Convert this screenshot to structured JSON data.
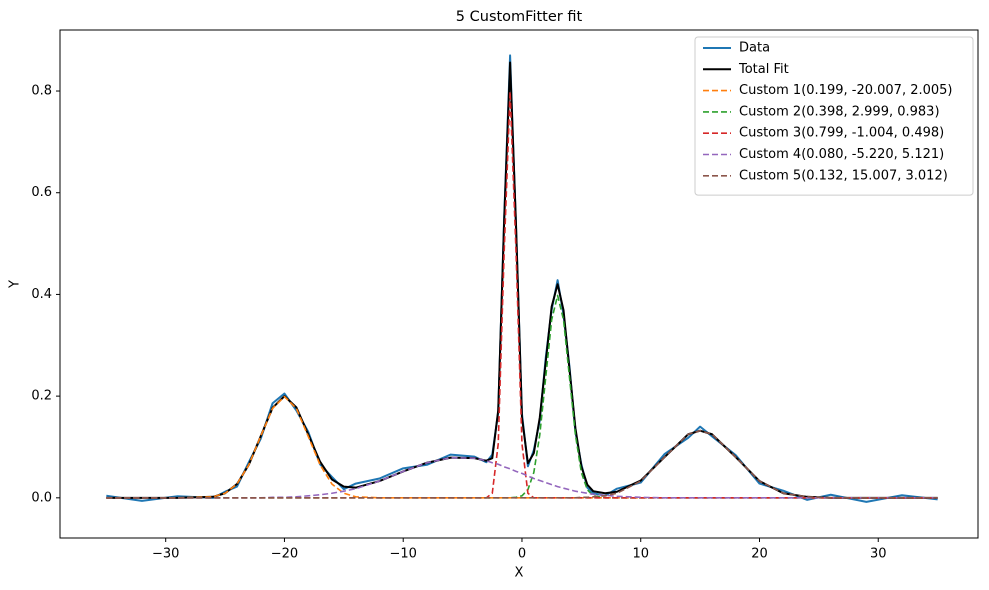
{
  "chart_data": {
    "type": "line",
    "title": "5 CustomFitter fit",
    "xlabel": "X",
    "ylabel": "Y",
    "x": [
      -35,
      -32,
      -29,
      -26,
      -25,
      -24,
      -23,
      -22,
      -21,
      -20,
      -19,
      -18,
      -17,
      -16,
      -15,
      -14,
      -12,
      -10,
      -8,
      -6,
      -4,
      -3,
      -2.5,
      -2,
      -1.5,
      -1,
      -0.5,
      0,
      0.5,
      1,
      1.5,
      2,
      2.5,
      3,
      3.5,
      4,
      4.5,
      5,
      5.5,
      6,
      7,
      8,
      10,
      12,
      14,
      15,
      16,
      18,
      20,
      22,
      24,
      26,
      29,
      32,
      35
    ],
    "series": [
      {
        "name": "Data",
        "color": "#1f77b4",
        "style": "solid",
        "width": 2,
        "values": [
          0.004,
          -0.006,
          0.003,
          0.0,
          0.012,
          0.022,
          0.07,
          0.116,
          0.186,
          0.205,
          0.172,
          0.13,
          0.066,
          0.041,
          0.017,
          0.028,
          0.038,
          0.058,
          0.065,
          0.085,
          0.081,
          0.07,
          0.085,
          0.168,
          0.55,
          0.87,
          0.53,
          0.165,
          0.062,
          0.094,
          0.152,
          0.275,
          0.37,
          0.428,
          0.36,
          0.258,
          0.13,
          0.066,
          0.02,
          0.009,
          0.004,
          0.018,
          0.03,
          0.086,
          0.118,
          0.14,
          0.121,
          0.084,
          0.028,
          0.014,
          -0.004,
          0.006,
          -0.008,
          0.005,
          -0.003
        ]
      },
      {
        "name": "Total Fit",
        "color": "#000000",
        "style": "solid",
        "width": 2,
        "values": [
          0,
          0,
          0,
          0.002,
          0.009,
          0.027,
          0.065,
          0.121,
          0.177,
          0.2,
          0.178,
          0.125,
          0.071,
          0.036,
          0.022,
          0.02,
          0.033,
          0.052,
          0.069,
          0.079,
          0.078,
          0.073,
          0.078,
          0.172,
          0.544,
          0.856,
          0.536,
          0.158,
          0.068,
          0.088,
          0.158,
          0.267,
          0.376,
          0.42,
          0.369,
          0.253,
          0.137,
          0.062,
          0.026,
          0.013,
          0.009,
          0.012,
          0.034,
          0.08,
          0.125,
          0.132,
          0.125,
          0.08,
          0.033,
          0.009,
          0.002,
          0,
          0,
          0,
          0
        ]
      },
      {
        "name": "Custom 1(0.199, -20.007, 2.005)",
        "color": "#ff7f0e",
        "style": "dashed",
        "width": 1.6,
        "values": [
          0,
          0,
          0,
          0.002,
          0.009,
          0.027,
          0.065,
          0.121,
          0.176,
          0.199,
          0.176,
          0.121,
          0.065,
          0.027,
          0.009,
          0.002,
          0,
          0,
          0,
          0,
          0,
          0,
          0,
          0,
          0,
          0,
          0,
          0,
          0,
          0,
          0,
          0,
          0,
          0,
          0,
          0,
          0,
          0,
          0,
          0,
          0,
          0,
          0,
          0,
          0,
          0,
          0,
          0,
          0,
          0,
          0,
          0,
          0,
          0,
          0
        ]
      },
      {
        "name": "Custom 2(0.398, 2.999, 0.983)",
        "color": "#2ca02c",
        "style": "dashed",
        "width": 1.6,
        "values": [
          0,
          0,
          0,
          0,
          0,
          0,
          0,
          0,
          0,
          0,
          0,
          0,
          0,
          0,
          0,
          0,
          0,
          0,
          0,
          0,
          0,
          0,
          0,
          0,
          0,
          0,
          0.001,
          0.004,
          0.016,
          0.05,
          0.124,
          0.237,
          0.35,
          0.398,
          0.35,
          0.237,
          0.124,
          0.05,
          0.016,
          0.004,
          0,
          0,
          0,
          0,
          0,
          0,
          0,
          0,
          0,
          0,
          0,
          0,
          0,
          0,
          0
        ]
      },
      {
        "name": "Custom 3(0.799, -1.004, 0.498)",
        "color": "#d62728",
        "style": "dashed",
        "width": 1.6,
        "values": [
          0,
          0,
          0,
          0,
          0,
          0,
          0,
          0,
          0,
          0,
          0,
          0,
          0,
          0,
          0,
          0,
          0,
          0,
          0,
          0,
          0,
          0,
          0.009,
          0.106,
          0.483,
          0.799,
          0.483,
          0.106,
          0.009,
          0,
          0,
          0,
          0,
          0,
          0,
          0,
          0,
          0,
          0,
          0,
          0,
          0,
          0,
          0,
          0,
          0,
          0,
          0,
          0,
          0,
          0,
          0,
          0,
          0,
          0
        ]
      },
      {
        "name": "Custom 4(0.080, -5.220, 5.121)",
        "color": "#9467bd",
        "style": "dashed",
        "width": 1.6,
        "values": [
          0,
          0,
          0,
          0,
          0,
          0,
          0,
          0,
          0.001,
          0.001,
          0.002,
          0.004,
          0.006,
          0.009,
          0.013,
          0.018,
          0.033,
          0.052,
          0.069,
          0.079,
          0.078,
          0.073,
          0.069,
          0.066,
          0.061,
          0.057,
          0.052,
          0.048,
          0.043,
          0.038,
          0.034,
          0.03,
          0.026,
          0.022,
          0.019,
          0.016,
          0.013,
          0.011,
          0.009,
          0.007,
          0.005,
          0.003,
          0.001,
          0,
          0,
          0,
          0,
          0,
          0,
          0,
          0,
          0,
          0,
          0,
          0
        ]
      },
      {
        "name": "Custom 5(0.132, 15.007, 3.012)",
        "color": "#8c564b",
        "style": "dashed",
        "width": 1.6,
        "values": [
          0,
          0,
          0,
          0,
          0,
          0,
          0,
          0,
          0,
          0,
          0,
          0,
          0,
          0,
          0,
          0,
          0,
          0,
          0,
          0,
          0,
          0,
          0,
          0,
          0,
          0,
          0,
          0,
          0,
          0,
          0,
          0,
          0,
          0,
          0,
          0,
          0,
          0.001,
          0.001,
          0.002,
          0.004,
          0.009,
          0.033,
          0.08,
          0.125,
          0.132,
          0.125,
          0.08,
          0.033,
          0.009,
          0.002,
          0,
          0,
          0,
          0
        ]
      }
    ],
    "xlim": [
      -38.9,
      38.4
    ],
    "ylim": [
      -0.079,
      0.92
    ],
    "xticks": [
      {
        "value": -30,
        "label": "−30"
      },
      {
        "value": -20,
        "label": "−20"
      },
      {
        "value": -10,
        "label": "−10"
      },
      0,
      10,
      20,
      30
    ],
    "yticks": [
      {
        "value": 0,
        "label": "0.0"
      },
      0.2,
      0.4,
      0.6,
      0.8
    ],
    "grid": false,
    "legend": "upper right"
  }
}
